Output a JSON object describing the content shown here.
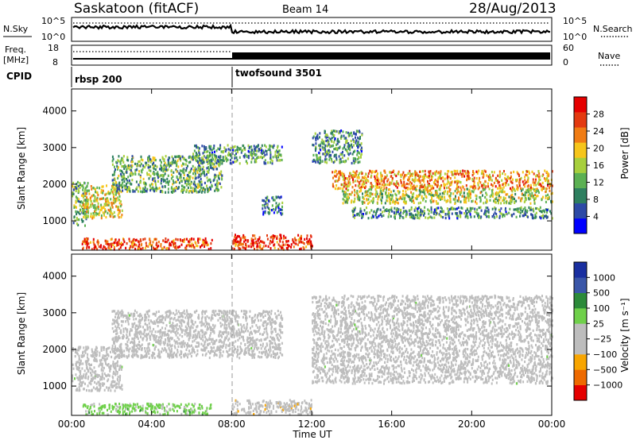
{
  "header": {
    "station": "Saskatoon (fitACF)",
    "beam": "Beam 14",
    "date": "28/Aug/2013"
  },
  "strip": {
    "nsky_label": "N.Sky",
    "nsky_ticks": [
      "10^5",
      "10^0"
    ],
    "nsearch_label": "N.Search",
    "nsearch_ticks": [
      "10^5",
      "10^0"
    ],
    "freq_label_1": "Freq.",
    "freq_label_2": "[MHz]",
    "freq_ticks": [
      "18",
      "8"
    ],
    "nave_label": "Nave",
    "nave_ticks": [
      "60",
      "0"
    ],
    "cpid_label": "CPID",
    "cpid_segments": [
      {
        "name": "rbsp 200",
        "start_hour": 0
      },
      {
        "name": "twofsound 3501",
        "start_hour": 8
      }
    ]
  },
  "colors": {
    "power_scale": [
      "#0000ff",
      "#2d4aa6",
      "#2e7f5f",
      "#5bb052",
      "#a7cf3c",
      "#f6c51a",
      "#f07c14",
      "#e33a10",
      "#e50000"
    ],
    "velocity_scale": [
      "#e50000",
      "#ee6a00",
      "#f8a500",
      "#bdbdbd",
      "#bdbdbd",
      "#6fd04a",
      "#2c8a3a",
      "#3a56a8",
      "#1a2fa0"
    ],
    "ground_scatter": "#bdbdbd"
  },
  "power_colorbar": {
    "label": "Power [dB]",
    "ticks": [
      "28",
      "24",
      "20",
      "16",
      "12",
      "8",
      "4"
    ]
  },
  "velocity_colorbar": {
    "label": "Velocity [m s⁻¹]",
    "ticks": [
      "1000",
      "500",
      "100",
      "25",
      "−25",
      "−100",
      "−500",
      "−1000"
    ]
  },
  "chart_data": [
    {
      "type": "heatmap",
      "quantity": "power",
      "xlabel": "",
      "ylabel": "Slant Range [km]",
      "xlim": [
        0,
        24
      ],
      "ylim": [
        200,
        4600
      ],
      "yticks": [
        1000,
        2000,
        3000,
        4000
      ],
      "clim": [
        0,
        32
      ],
      "units": "dB",
      "scatter_regions": [
        {
          "t0": 0.0,
          "t1": 0.8,
          "r0": 900,
          "r1": 2100,
          "level": 12
        },
        {
          "t0": 0.5,
          "t1": 2.5,
          "r0": 1100,
          "r1": 2000,
          "level": 18
        },
        {
          "t0": 2.0,
          "t1": 7.5,
          "r0": 1800,
          "r1": 2800,
          "level": 12
        },
        {
          "t0": 6.0,
          "t1": 10.5,
          "r0": 2600,
          "r1": 3100,
          "level": 10
        },
        {
          "t0": 9.5,
          "t1": 10.5,
          "r0": 1200,
          "r1": 1700,
          "level": 8
        },
        {
          "t0": 0.5,
          "t1": 7.0,
          "r0": 250,
          "r1": 550,
          "level": 26
        },
        {
          "t0": 8.0,
          "t1": 12.0,
          "r0": 250,
          "r1": 650,
          "level": 28
        },
        {
          "t0": 12.0,
          "t1": 14.5,
          "r0": 2600,
          "r1": 3500,
          "level": 10
        },
        {
          "t0": 13.0,
          "t1": 24.0,
          "r0": 1900,
          "r1": 2400,
          "level": 22
        },
        {
          "t0": 13.5,
          "t1": 24.0,
          "r0": 1500,
          "r1": 1900,
          "level": 16
        },
        {
          "t0": 14.0,
          "t1": 24.0,
          "r0": 1100,
          "r1": 1400,
          "level": 10
        }
      ]
    },
    {
      "type": "heatmap",
      "quantity": "velocity",
      "xlabel": "Time UT",
      "ylabel": "Slant Range [km]",
      "xlim": [
        0,
        24
      ],
      "ylim": [
        200,
        4600
      ],
      "yticks": [
        1000,
        2000,
        3000,
        4000
      ],
      "xticks": [
        "00:00",
        "04:00",
        "08:00",
        "12:00",
        "16:00",
        "20:00",
        "00:00"
      ],
      "clim": [
        -1000,
        1000
      ],
      "units": "m s-1",
      "scatter_regions": [
        {
          "t0": 0.0,
          "t1": 2.5,
          "r0": 900,
          "r1": 2100,
          "value": 0,
          "ground": true
        },
        {
          "t0": 2.0,
          "t1": 10.5,
          "r0": 1800,
          "r1": 3100,
          "value": 0,
          "ground": true
        },
        {
          "t0": 0.5,
          "t1": 7.0,
          "r0": 250,
          "r1": 550,
          "value": 200
        },
        {
          "t0": 8.0,
          "t1": 12.0,
          "r0": 250,
          "r1": 650,
          "value": -200
        },
        {
          "t0": 12.0,
          "t1": 24.0,
          "r0": 1100,
          "r1": 3500,
          "value": 0,
          "ground": true
        }
      ]
    }
  ]
}
